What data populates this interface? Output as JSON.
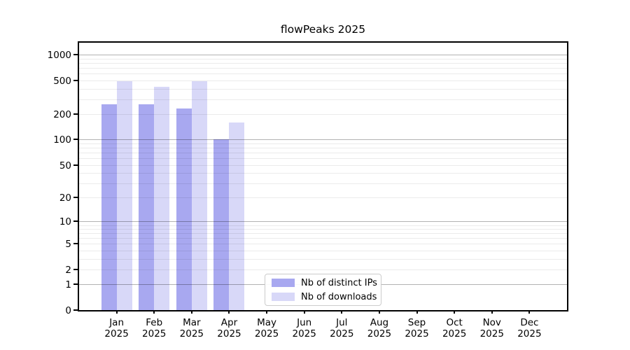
{
  "chart_data": {
    "type": "bar",
    "title": "flowPeaks 2025",
    "year": "2025",
    "categories": [
      "Jan",
      "Feb",
      "Mar",
      "Apr",
      "May",
      "Jun",
      "Jul",
      "Aug",
      "Sep",
      "Oct",
      "Nov",
      "Dec"
    ],
    "series": [
      {
        "name": "Nb of distinct IPs",
        "color": "#a8a8f0",
        "values": [
          260,
          260,
          234,
          100,
          0,
          0,
          0,
          0,
          0,
          0,
          0,
          0
        ]
      },
      {
        "name": "Nb of downloads",
        "color": "#d8d8f8",
        "values": [
          490,
          425,
          490,
          160,
          0,
          0,
          0,
          0,
          0,
          0,
          0,
          0
        ]
      }
    ],
    "xlabel": "",
    "ylabel": "",
    "yscale": "log1p",
    "y_ticks": [
      0,
      1,
      2,
      5,
      10,
      20,
      50,
      100,
      200,
      500,
      1000
    ],
    "ylim": [
      0,
      1480
    ],
    "grid": "on",
    "legend_position": "bottom-center",
    "colors": {
      "axis": "#000000",
      "grid_major": "rgba(0,0,0,0.30)",
      "grid_minor": "rgba(0,0,0,0.08)",
      "legend_border": "#cccccc",
      "text": "#000000",
      "background": "#ffffff"
    }
  }
}
